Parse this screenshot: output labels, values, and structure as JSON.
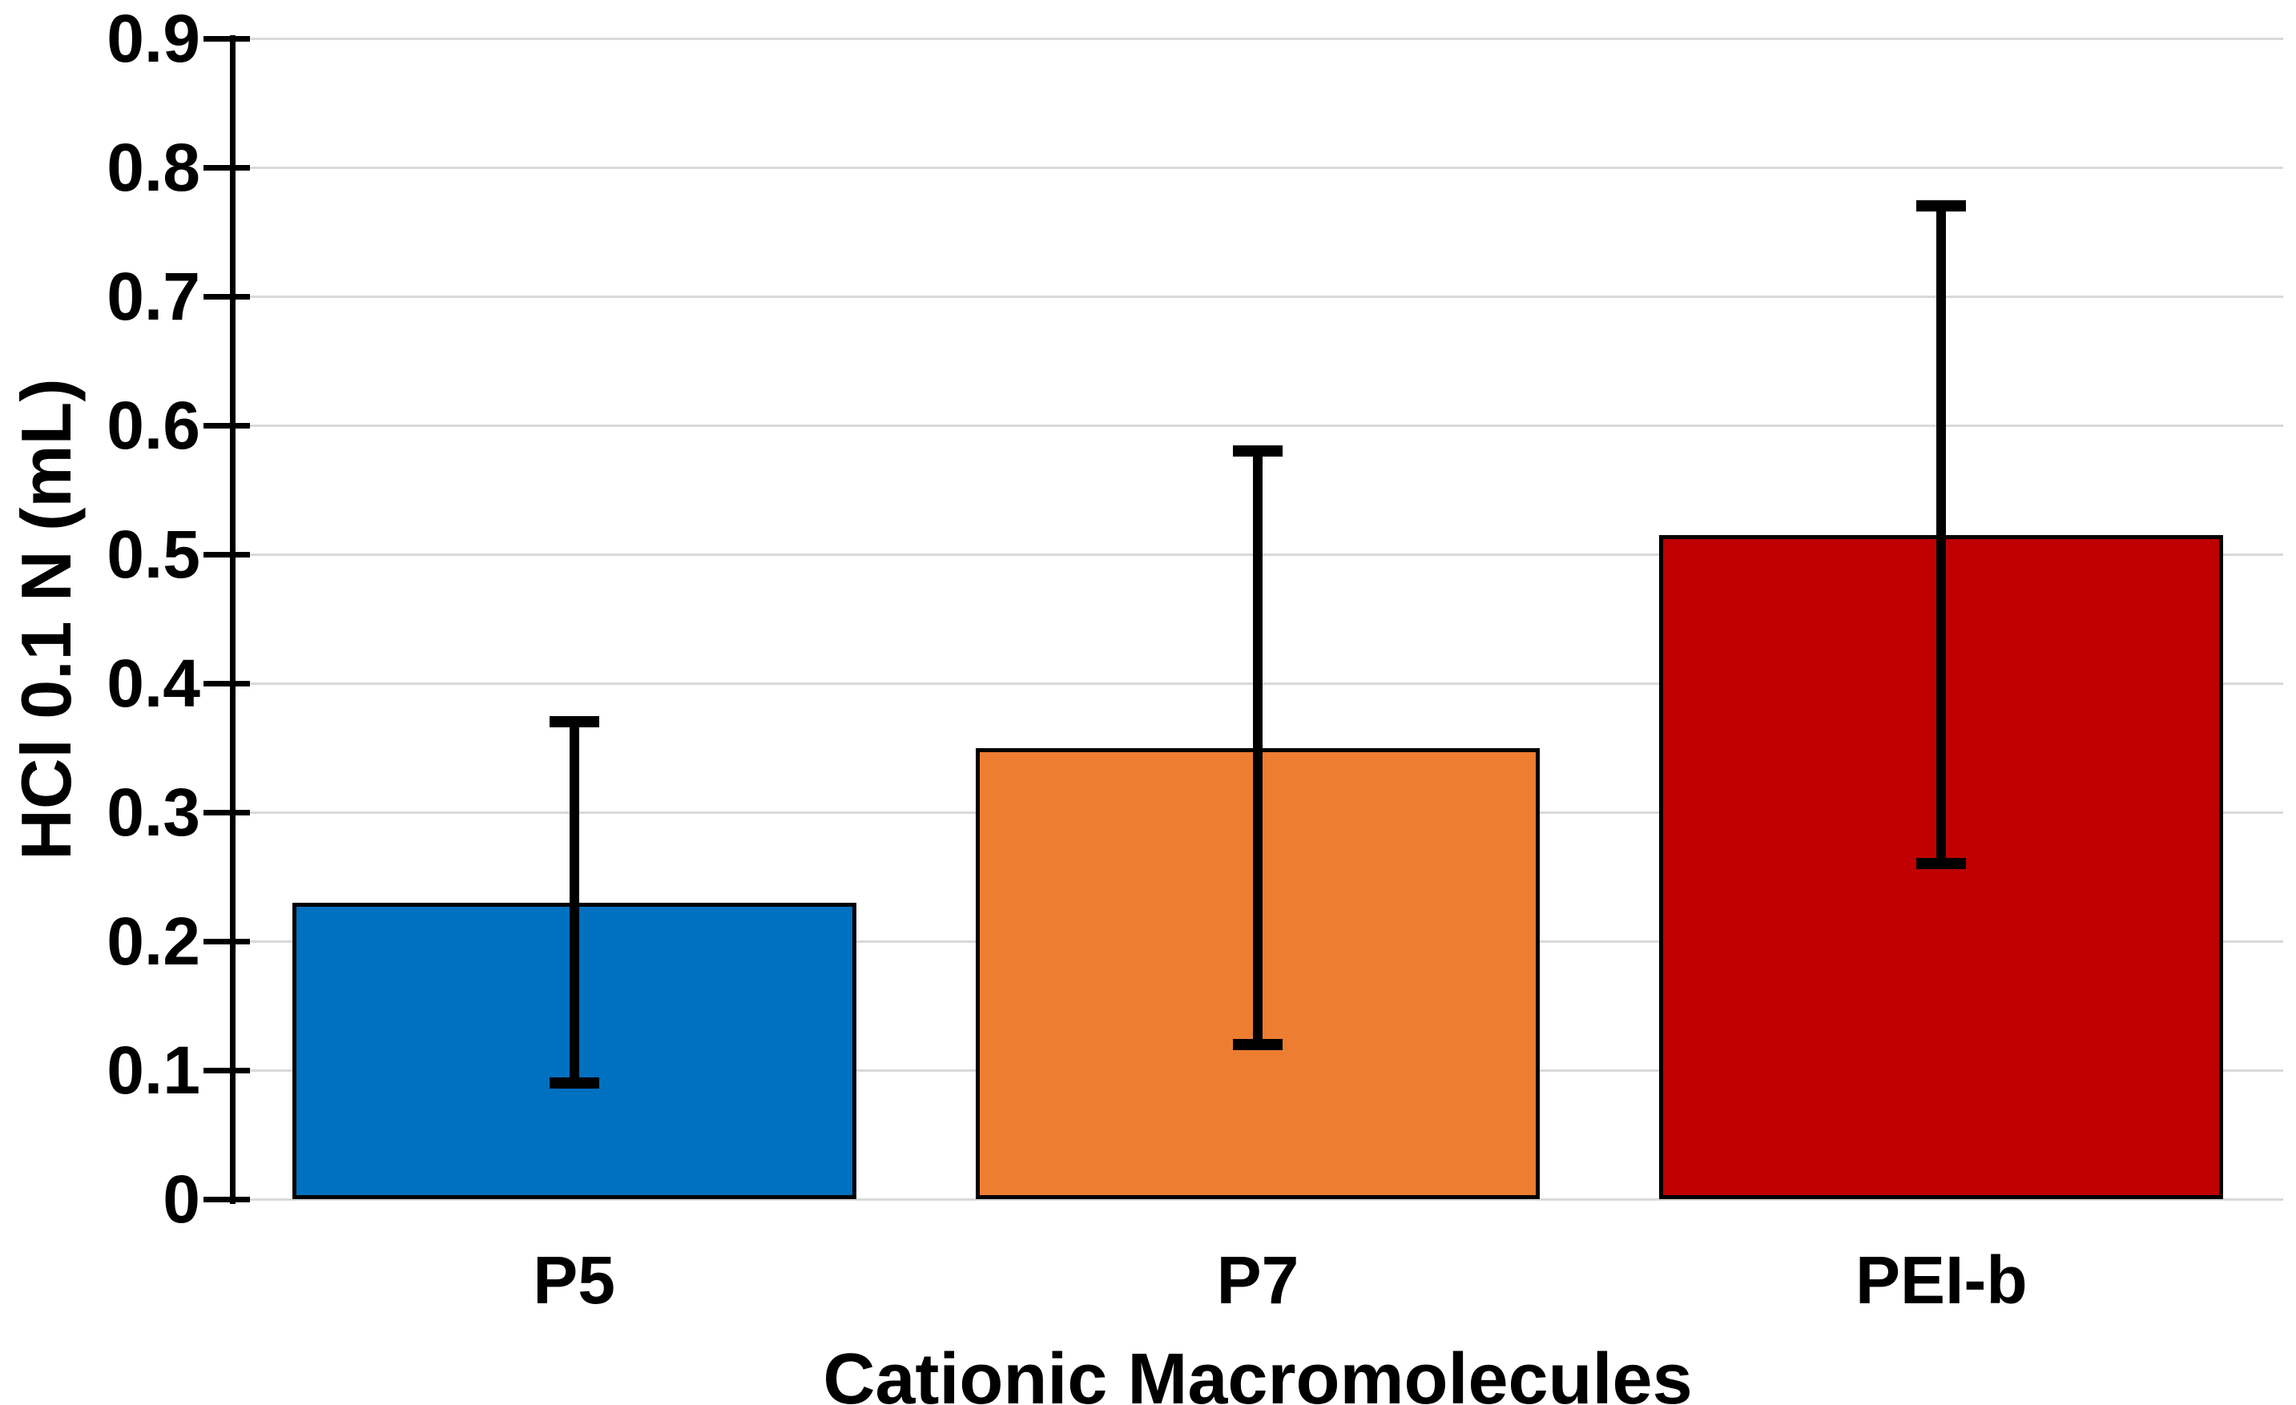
{
  "chart_data": {
    "type": "bar",
    "title": "",
    "xlabel": "Cationic Macromolecules",
    "ylabel": "HCl 0.1 N (mL)",
    "categories": [
      "P5",
      "P7",
      "PEI-b"
    ],
    "values": [
      0.23,
      0.35,
      0.515
    ],
    "errors": [
      0.14,
      0.23,
      0.255
    ],
    "bar_colors": [
      "#0070C0",
      "#ED7D31",
      "#C00000"
    ],
    "bar_border_color": "#000000",
    "error_bar_color": "#000000",
    "ylim": [
      0,
      0.9
    ],
    "ytick_step": 0.1,
    "ytick_labels": [
      "0",
      "0.1",
      "0.2",
      "0.3",
      "0.4",
      "0.5",
      "0.6",
      "0.7",
      "0.8",
      "0.9"
    ],
    "grid": true,
    "gridline_color": "#d9d9d9",
    "axis_color": "#000000",
    "background_color": "#ffffff",
    "legend_position": "none"
  }
}
